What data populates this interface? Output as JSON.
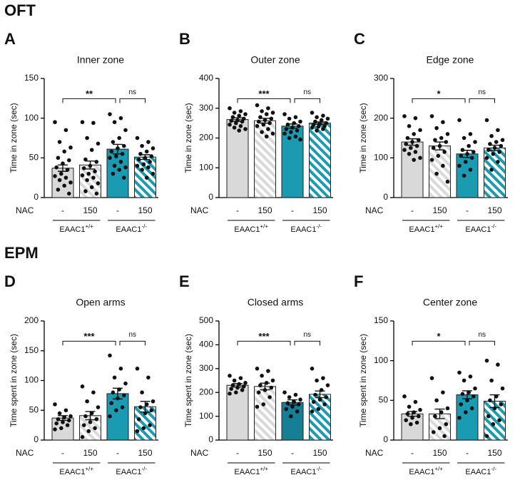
{
  "sections": [
    "OFT",
    "EPM"
  ],
  "chart_data": [
    {
      "type": "bar",
      "panel": "A",
      "title": "Inner zone",
      "ylabel": "Time in zone (sec)",
      "ylim": [
        0,
        150
      ],
      "yticks": [
        0,
        50,
        100,
        150
      ],
      "row_label": "NAC",
      "categories": [
        "-",
        "150",
        "-",
        "150"
      ],
      "groups": [
        {
          "name": "EAAC1",
          "sup": "+/+"
        },
        {
          "name": "EAAC1",
          "sup": "-/-"
        }
      ],
      "colors": [
        "#d9d9d9",
        "#d9d9d9",
        "#1b9bb1",
        "#1b9bb1"
      ],
      "hatched": [
        false,
        true,
        false,
        true
      ],
      "values": [
        37,
        41,
        61,
        51
      ],
      "errors": [
        4,
        5,
        6,
        3
      ],
      "points": [
        [
          95,
          85,
          70,
          63,
          58,
          50,
          47,
          43,
          38,
          35,
          30,
          27,
          25,
          22,
          19,
          15,
          10,
          5
        ],
        [
          95,
          94,
          75,
          68,
          60,
          48,
          45,
          40,
          37,
          33,
          30,
          28,
          25,
          22,
          18,
          13,
          8,
          5
        ],
        [
          105,
          100,
          95,
          85,
          75,
          70,
          65,
          62,
          58,
          55,
          52,
          50,
          45,
          40,
          38,
          35,
          30,
          25
        ],
        [
          75,
          70,
          65,
          62,
          58,
          55,
          52,
          50,
          48,
          45,
          42,
          40,
          38,
          35,
          30,
          25
        ]
      ],
      "comparisons": [
        {
          "from": 0,
          "to": 2,
          "label": "**"
        },
        {
          "from": 2,
          "to": 3,
          "label": "ns"
        }
      ]
    },
    {
      "type": "bar",
      "panel": "B",
      "title": "Outer zone",
      "ylabel": "Time in zone (sec)",
      "ylim": [
        0,
        400
      ],
      "yticks": [
        0,
        100,
        200,
        300,
        400
      ],
      "row_label": "NAC",
      "categories": [
        "-",
        "150",
        "-",
        "150"
      ],
      "groups": [
        {
          "name": "EAAC1",
          "sup": "+/+"
        },
        {
          "name": "EAAC1",
          "sup": "-/-"
        }
      ],
      "colors": [
        "#d9d9d9",
        "#d9d9d9",
        "#1b9bb1",
        "#1b9bb1"
      ],
      "hatched": [
        false,
        true,
        false,
        true
      ],
      "values": [
        262,
        258,
        240,
        250
      ],
      "errors": [
        6,
        8,
        7,
        4
      ],
      "points": [
        [
          300,
          290,
          285,
          280,
          275,
          270,
          265,
          260,
          258,
          255,
          250,
          245,
          240,
          235,
          230,
          225
        ],
        [
          310,
          300,
          290,
          285,
          280,
          270,
          265,
          260,
          255,
          250,
          245,
          240,
          230,
          220,
          215,
          205
        ],
        [
          280,
          270,
          265,
          255,
          250,
          245,
          240,
          235,
          230,
          225,
          220,
          215,
          205,
          200,
          195
        ],
        [
          285,
          275,
          270,
          265,
          260,
          255,
          250,
          248,
          245,
          240,
          238,
          235,
          230,
          225
        ]
      ],
      "comparisons": [
        {
          "from": 0,
          "to": 2,
          "label": "***"
        },
        {
          "from": 2,
          "to": 3,
          "label": "ns"
        }
      ]
    },
    {
      "type": "bar",
      "panel": "C",
      "title": "Edge zone",
      "ylabel": "Time in zone (sec)",
      "ylim": [
        0,
        300
      ],
      "yticks": [
        0,
        100,
        200,
        300
      ],
      "row_label": "NAC",
      "categories": [
        "-",
        "150",
        "-",
        "150"
      ],
      "groups": [
        {
          "name": "EAAC1",
          "sup": "+/+"
        },
        {
          "name": "EAAC1",
          "sup": "-/-"
        }
      ],
      "colors": [
        "#d9d9d9",
        "#d9d9d9",
        "#1b9bb1",
        "#1b9bb1"
      ],
      "hatched": [
        false,
        true,
        false,
        true
      ],
      "values": [
        140,
        130,
        110,
        125
      ],
      "errors": [
        8,
        10,
        9,
        7
      ],
      "points": [
        [
          205,
          200,
          180,
          170,
          160,
          150,
          145,
          140,
          135,
          130,
          125,
          120,
          115,
          110,
          100,
          95
        ],
        [
          205,
          190,
          175,
          160,
          150,
          145,
          140,
          130,
          125,
          115,
          105,
          95,
          80,
          60,
          40
        ],
        [
          195,
          160,
          150,
          140,
          130,
          120,
          115,
          110,
          105,
          100,
          90,
          80,
          70,
          55
        ],
        [
          195,
          170,
          155,
          145,
          140,
          135,
          130,
          125,
          120,
          115,
          110,
          100,
          90,
          70
        ]
      ],
      "comparisons": [
        {
          "from": 0,
          "to": 2,
          "label": "*"
        },
        {
          "from": 2,
          "to": 3,
          "label": "ns"
        }
      ]
    },
    {
      "type": "bar",
      "panel": "D",
      "title": "Open arms",
      "ylabel": "Time spent in zone (sec)",
      "ylim": [
        0,
        200
      ],
      "yticks": [
        0,
        50,
        100,
        150,
        200
      ],
      "row_label": "NAC",
      "categories": [
        "-",
        "150",
        "-",
        "150"
      ],
      "groups": [
        {
          "name": "EAAC1",
          "sup": "+/+"
        },
        {
          "name": "EAAC1",
          "sup": "-/-"
        }
      ],
      "colors": [
        "#d9d9d9",
        "#d9d9d9",
        "#1b9bb1",
        "#1b9bb1"
      ],
      "hatched": [
        false,
        true,
        false,
        true
      ],
      "values": [
        37,
        41,
        78,
        56
      ],
      "errors": [
        4,
        7,
        9,
        9
      ],
      "points": [
        [
          60,
          50,
          45,
          40,
          38,
          35,
          33,
          30,
          28,
          25,
          20,
          18
        ],
        [
          90,
          80,
          65,
          55,
          45,
          40,
          35,
          30,
          25,
          20,
          15,
          5
        ],
        [
          142,
          120,
          105,
          95,
          85,
          80,
          75,
          70,
          62,
          55,
          50,
          40
        ],
        [
          120,
          105,
          80,
          65,
          60,
          55,
          50,
          45,
          35,
          25,
          20,
          15
        ]
      ],
      "comparisons": [
        {
          "from": 0,
          "to": 2,
          "label": "***"
        },
        {
          "from": 2,
          "to": 3,
          "label": "ns"
        }
      ]
    },
    {
      "type": "bar",
      "panel": "E",
      "title": "Closed arms",
      "ylabel": "Time spent in zone (sec)",
      "ylim": [
        0,
        500
      ],
      "yticks": [
        0,
        100,
        200,
        300,
        400,
        500
      ],
      "row_label": "NAC",
      "categories": [
        "-",
        "150",
        "-",
        "150"
      ],
      "groups": [
        {
          "name": "EAAC1",
          "sup": "+/+"
        },
        {
          "name": "EAAC1",
          "sup": "-/-"
        }
      ],
      "colors": [
        "#d9d9d9",
        "#d9d9d9",
        "#167f95",
        "#1b9bb1"
      ],
      "hatched": [
        false,
        true,
        false,
        true
      ],
      "values": [
        230,
        225,
        158,
        192
      ],
      "errors": [
        7,
        14,
        11,
        14
      ],
      "points": [
        [
          270,
          260,
          250,
          240,
          235,
          230,
          225,
          220,
          215,
          210,
          200,
          195
        ],
        [
          300,
          290,
          270,
          250,
          240,
          230,
          220,
          210,
          200,
          180,
          150,
          140
        ],
        [
          200,
          190,
          180,
          170,
          160,
          155,
          150,
          140,
          130,
          120,
          100
        ],
        [
          300,
          260,
          250,
          230,
          210,
          190,
          180,
          170,
          160,
          150,
          130,
          120
        ]
      ],
      "comparisons": [
        {
          "from": 0,
          "to": 2,
          "label": "***"
        },
        {
          "from": 2,
          "to": 3,
          "label": "ns"
        }
      ]
    },
    {
      "type": "bar",
      "panel": "F",
      "title": "Center zone",
      "ylabel": "Time spent in zone (sec)",
      "ylim": [
        0,
        150
      ],
      "yticks": [
        0,
        50,
        100,
        150
      ],
      "row_label": "NAC",
      "categories": [
        "-",
        "150",
        "-",
        "150"
      ],
      "groups": [
        {
          "name": "EAAC1",
          "sup": "+/+"
        },
        {
          "name": "EAAC1",
          "sup": "-/-"
        }
      ],
      "colors": [
        "#d9d9d9",
        "#d9d9d9",
        "#1b9bb1",
        "#1b9bb1"
      ],
      "hatched": [
        false,
        true,
        false,
        true
      ],
      "values": [
        33,
        33,
        57,
        49
      ],
      "errors": [
        3,
        6,
        5,
        8
      ],
      "points": [
        [
          55,
          48,
          42,
          38,
          35,
          33,
          30,
          28,
          25,
          22,
          20
        ],
        [
          78,
          60,
          50,
          40,
          35,
          30,
          20,
          15,
          10,
          5
        ],
        [
          85,
          80,
          75,
          65,
          60,
          58,
          55,
          50,
          45,
          40,
          35,
          28
        ],
        [
          100,
          95,
          75,
          65,
          55,
          50,
          45,
          40,
          30,
          25,
          20,
          5
        ]
      ],
      "comparisons": [
        {
          "from": 0,
          "to": 2,
          "label": "*"
        },
        {
          "from": 2,
          "to": 3,
          "label": "ns"
        }
      ]
    }
  ]
}
